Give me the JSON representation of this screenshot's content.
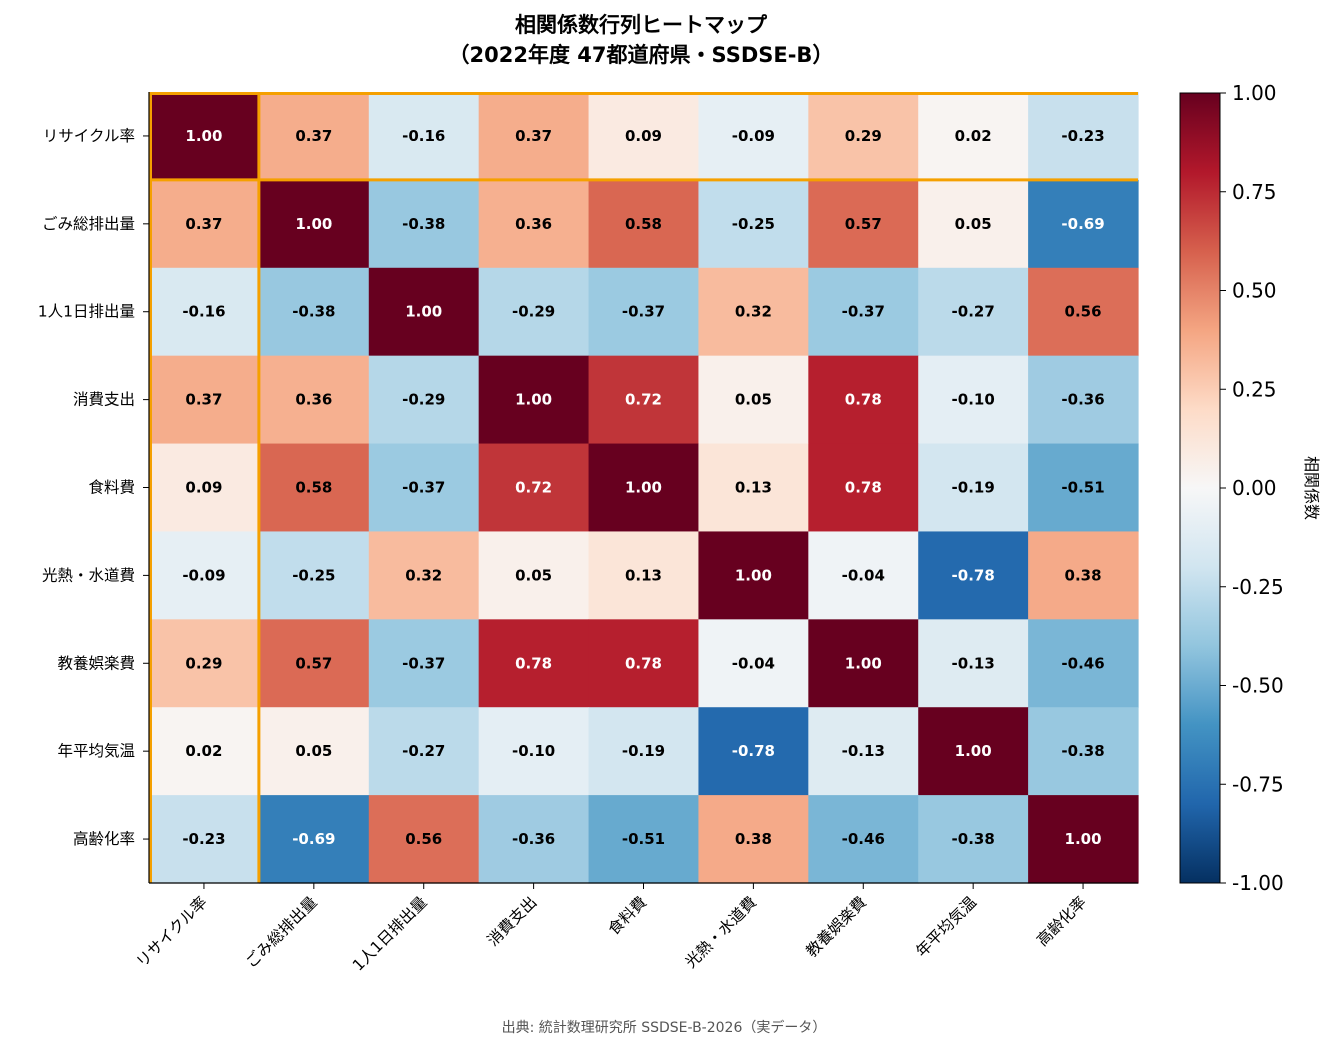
{
  "chart_data": {
    "type": "heatmap",
    "title": "相関係数行列ヒートマップ",
    "subtitle": "（2022年度 47都道府県・SSDSE-B）",
    "categories": [
      "リサイクル率",
      "ごみ総排出量",
      "1人1日排出量",
      "消費支出",
      "食料費",
      "光熱・水道費",
      "教養娯楽費",
      "年平均気温",
      "高齢化率"
    ],
    "values": [
      [
        1.0,
        0.37,
        -0.16,
        0.37,
        0.09,
        -0.09,
        0.29,
        0.02,
        -0.23
      ],
      [
        0.37,
        1.0,
        -0.38,
        0.36,
        0.58,
        -0.25,
        0.57,
        0.05,
        -0.69
      ],
      [
        -0.16,
        -0.38,
        1.0,
        -0.29,
        -0.37,
        0.32,
        -0.37,
        -0.27,
        0.56
      ],
      [
        0.37,
        0.36,
        -0.29,
        1.0,
        0.72,
        0.05,
        0.78,
        -0.1,
        -0.36
      ],
      [
        0.09,
        0.58,
        -0.37,
        0.72,
        1.0,
        0.13,
        0.78,
        -0.19,
        -0.51
      ],
      [
        -0.09,
        -0.25,
        0.32,
        0.05,
        0.13,
        1.0,
        -0.04,
        -0.78,
        0.38
      ],
      [
        0.29,
        0.57,
        -0.37,
        0.78,
        0.78,
        -0.04,
        1.0,
        -0.13,
        -0.46
      ],
      [
        0.02,
        0.05,
        -0.27,
        -0.1,
        -0.19,
        -0.78,
        -0.13,
        1.0,
        -0.38
      ],
      [
        -0.23,
        -0.69,
        0.56,
        -0.36,
        -0.51,
        0.38,
        -0.46,
        -0.38,
        1.0
      ]
    ],
    "colorbar": {
      "label": "相関係数",
      "range": [
        -1.0,
        1.0
      ],
      "ticks": [
        "1.00",
        "0.75",
        "0.50",
        "0.25",
        "0.00",
        "-0.25",
        "-0.50",
        "-0.75",
        "-1.00"
      ],
      "colormap": "RdBu_r"
    },
    "highlight_color": "#f5a000",
    "highlighted": "リサイクル率"
  },
  "source": "出典: 統計数理研究所 SSDSE-B-2026（実データ）"
}
